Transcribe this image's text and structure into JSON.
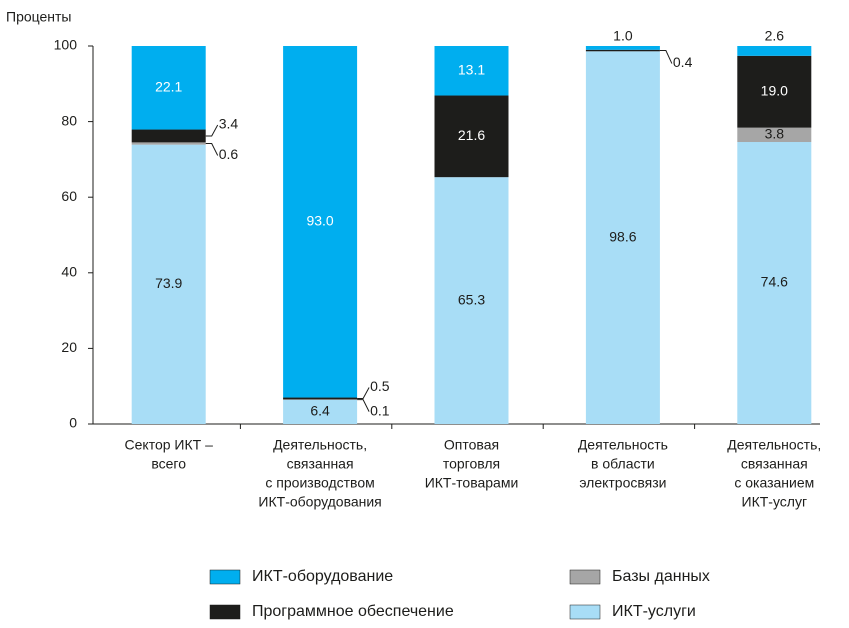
{
  "chart_data": {
    "type": "stacked_bar",
    "y_label": "Проценты",
    "categories": [
      [
        "Сектор ИКТ –",
        "всего"
      ],
      [
        "Деятельность,",
        "связанная",
        "с производством",
        "ИКТ-оборудования"
      ],
      [
        "Оптовая",
        "торговля",
        "ИКТ-товарами"
      ],
      [
        "Деятельность",
        "в области",
        "электросвязи"
      ],
      [
        "Деятельность,",
        "связанная",
        "с оказанием",
        "ИКТ-услуг"
      ]
    ],
    "series": [
      {
        "name": "ИКТ-услуги",
        "color": "#a8ddf6",
        "values": [
          73.9,
          6.4,
          65.3,
          98.6,
          74.6
        ],
        "value_labels": [
          "73.9",
          "6.4",
          "65.3",
          "98.6",
          "74.6"
        ]
      },
      {
        "name": "Базы данных",
        "color": "#a6a6a6",
        "values": [
          0.6,
          0.1,
          null,
          null,
          3.8
        ],
        "value_labels": [
          "0.6",
          "0.1",
          null,
          null,
          "3.8"
        ]
      },
      {
        "name": "Программное обеспечение",
        "color": "#1d1d1b",
        "values": [
          3.4,
          0.5,
          21.6,
          0.4,
          19.0
        ],
        "value_labels": [
          "3.4",
          "0.5",
          "21.6",
          "0.4",
          "19.0"
        ]
      },
      {
        "name": "ИКТ-оборудование",
        "color": "#00aeef",
        "values": [
          22.1,
          93.0,
          13.1,
          1.0,
          2.6
        ],
        "value_labels": [
          "22.1",
          "93.0",
          "13.1",
          "1.0",
          "2.6"
        ]
      }
    ],
    "ylim": [
      0,
      100
    ],
    "yticks": [
      0,
      20,
      40,
      60,
      80,
      100
    ],
    "grid": false
  }
}
